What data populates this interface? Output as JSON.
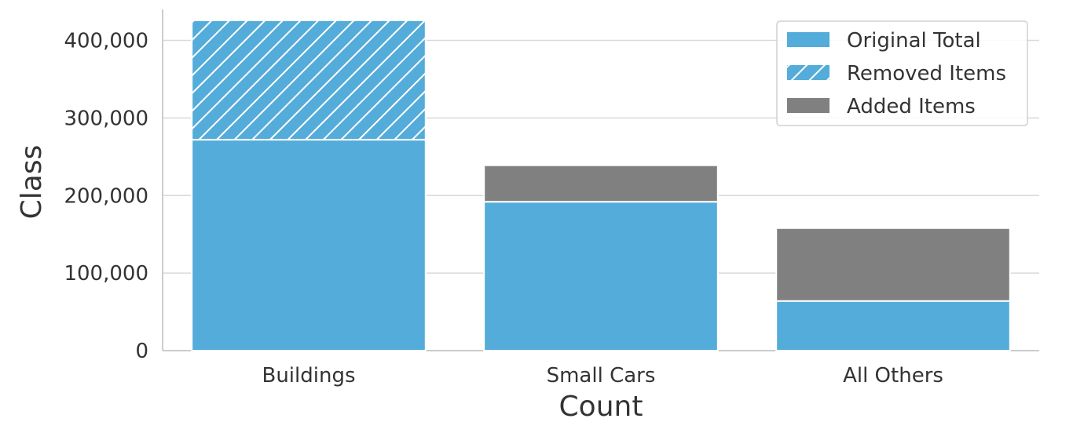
{
  "chart_data": {
    "type": "bar",
    "stacked": true,
    "categories": [
      "Buildings",
      "Small Cars",
      "All Others"
    ],
    "series": [
      {
        "name": "Original Total",
        "values": [
          272000,
          192000,
          64000
        ],
        "color": "#53acd9",
        "pattern": "solid"
      },
      {
        "name": "Removed Items",
        "values": [
          154000,
          0,
          0
        ],
        "color": "#53acd9",
        "pattern": "hatched"
      },
      {
        "name": "Added Items",
        "values": [
          0,
          47000,
          94000
        ],
        "color": "#808080",
        "pattern": "solid"
      }
    ],
    "xlabel": "Count",
    "ylabel": "Class",
    "ylim": [
      0,
      440000
    ],
    "yticks": [
      0,
      100000,
      200000,
      300000,
      400000
    ],
    "ytick_labels": [
      "0",
      "100,000",
      "200,000",
      "300,000",
      "400,000"
    ],
    "grid": true,
    "legend_position": "top-right"
  }
}
